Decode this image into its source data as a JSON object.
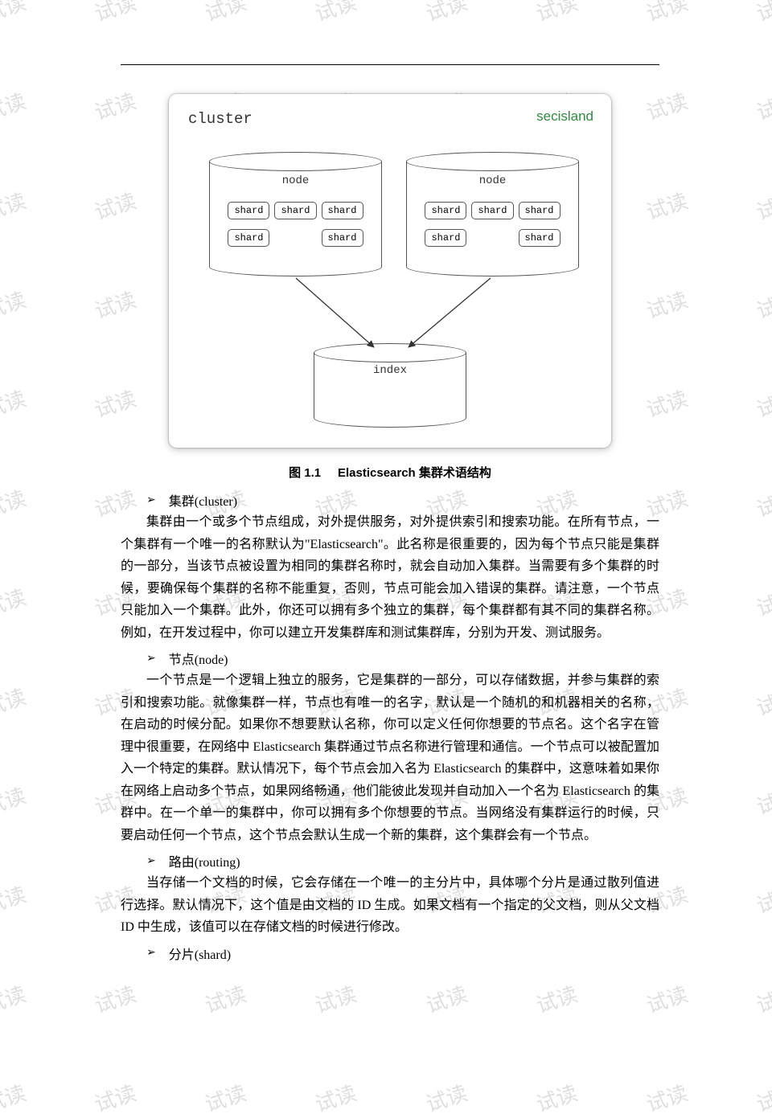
{
  "watermark": {
    "text": "试读",
    "color": "rgba(140,140,140,0.28)",
    "fontsize": 26,
    "angle_deg": -18
  },
  "background_color": "#ffffff",
  "diagram": {
    "cluster_label": "cluster",
    "brand": "secisland",
    "brand_color": "#2e8b3f",
    "nodes": [
      {
        "label": "node",
        "shard_rows": [
          [
            "shard",
            "shard",
            "shard"
          ],
          [
            "shard",
            "shard"
          ]
        ]
      },
      {
        "label": "node",
        "shard_rows": [
          [
            "shard",
            "shard",
            "shard"
          ],
          [
            "shard",
            "shard"
          ]
        ]
      }
    ],
    "index_label": "index"
  },
  "caption": {
    "prefix": "图  1.1",
    "text": "Elasticsearch 集群术语结构"
  },
  "sections": [
    {
      "title": "集群(cluster)",
      "body": "集群由一个或多个节点组成，对外提供服务，对外提供索引和搜索功能。在所有节点，一个集群有一个唯一的名称默认为\"Elasticsearch\"。此名称是很重要的，因为每个节点只能是集群的一部分，当该节点被设置为相同的集群名称时，就会自动加入集群。当需要有多个集群的时候，要确保每个集群的名称不能重复，否则，节点可能会加入错误的集群。请注意，一个节点只能加入一个集群。此外，你还可以拥有多个独立的集群，每个集群都有其不同的集群名称。例如，在开发过程中，你可以建立开发集群库和测试集群库，分别为开发、测试服务。"
    },
    {
      "title": "节点(node)",
      "body": "一个节点是一个逻辑上独立的服务，它是集群的一部分，可以存储数据，并参与集群的索引和搜索功能。就像集群一样，节点也有唯一的名字，默认是一个随机的和机器相关的名称，在启动的时候分配。如果你不想要默认名称，你可以定义任何你想要的节点名。这个名字在管理中很重要，在网络中 Elasticsearch 集群通过节点名称进行管理和通信。一个节点可以被配置加入一个特定的集群。默认情况下，每个节点会加入名为 Elasticsearch 的集群中，这意味着如果你在网络上启动多个节点，如果网络畅通，他们能彼此发现并自动加入一个名为 Elasticsearch 的集群中。在一个单一的集群中，你可以拥有多个你想要的节点。当网络没有集群运行的时候，只要启动任何一个节点，这个节点会默认生成一个新的集群，这个集群会有一个节点。"
    },
    {
      "title": "路由(routing)",
      "body": "当存储一个文档的时候，它会存储在一个唯一的主分片中，具体哪个分片是通过散列值进行选择。默认情况下，这个值是由文档的 ID 生成。如果文档有一个指定的父文档，则从父文档 ID 中生成，该值可以在存储文档的时候进行修改。"
    },
    {
      "title": "分片(shard)",
      "body": ""
    }
  ]
}
